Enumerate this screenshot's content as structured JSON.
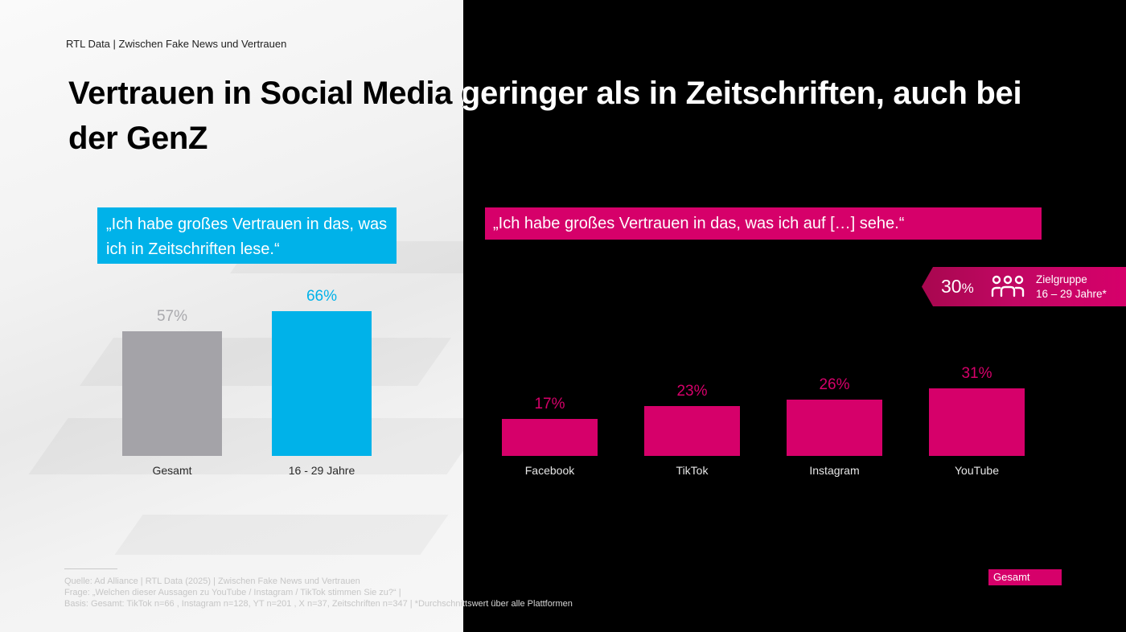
{
  "header": {
    "kicker": "RTL Data | Zwischen Fake News und Vertrauen",
    "title": "Vertrauen in Social Media geringer als in Zeitschriften, auch bei der GenZ"
  },
  "colors": {
    "cyan": "#00b2e9",
    "gray_bar": "#a4a3a8",
    "magenta": "#d6006a",
    "badge_dark": "#a8074f"
  },
  "left_panel": {
    "quote": "„Ich habe großes Vertrauen in das, was ich in Zeitschriften lese.“"
  },
  "right_panel": {
    "quote": "„Ich habe großes Vertrauen in das, was ich auf […] sehe.“",
    "badge": {
      "value": "30",
      "unit": "%",
      "icon": "group-people-icon",
      "line1": "Zielgruppe",
      "line2": "16 – 29 Jahre*"
    },
    "legend_label": "Gesamt"
  },
  "chart_data": [
    {
      "type": "bar",
      "title": "„Ich habe großes Vertrauen in das, was ich in Zeitschriften lese.“",
      "categories": [
        "Gesamt",
        "16 - 29 Jahre"
      ],
      "values": [
        57,
        66
      ],
      "value_labels": [
        "57%",
        "66%"
      ],
      "colors": [
        "#a4a3a8",
        "#00b2e9"
      ],
      "label_colors": [
        "#a9a9ad",
        "#00b2e9"
      ],
      "unit": "%",
      "xlabel": "",
      "ylabel": "",
      "ylim": [
        0,
        66
      ],
      "grid": false
    },
    {
      "type": "bar",
      "title": "„Ich habe großes Vertrauen in das, was ich auf […] sehe.“",
      "categories": [
        "Facebook",
        "TikTok",
        "Instagram",
        "YouTube"
      ],
      "values": [
        17,
        23,
        26,
        31
      ],
      "value_labels": [
        "17%",
        "23%",
        "26%",
        "31%"
      ],
      "series_name": "Gesamt",
      "color": "#d6006a",
      "unit": "%",
      "xlabel": "",
      "ylabel": "",
      "ylim": [
        0,
        31
      ],
      "grid": false,
      "annotation": "30% Zielgruppe 16 – 29 Jahre*"
    }
  ],
  "footnote": {
    "source": "Quelle: Ad Alliance | RTL Data (2025) | Zwischen Fake News und Vertrauen",
    "question": "Frage: „Welchen dieser Aussagen zu YouTube / Instagram / TikTok stimmen Sie zu?“ |",
    "basis": "Basis: Gesamt: TikTok n=66 , Instagram n=128, YT n=201 , X n=37, Zeitschriften n=347 | *Durchschnittswert über alle Plattformen"
  }
}
